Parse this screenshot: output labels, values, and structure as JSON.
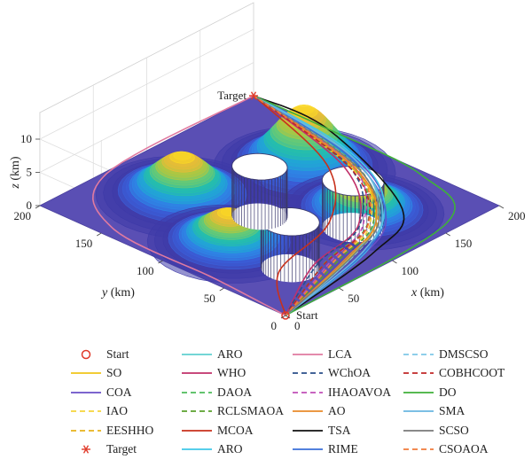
{
  "chart_data": {
    "type": "3d-path",
    "axes": {
      "x": {
        "label_var": "x",
        "label_unit": "(km)",
        "ticks": [
          0,
          50,
          100,
          150,
          200
        ],
        "range": [
          0,
          200
        ]
      },
      "y": {
        "label_var": "y",
        "label_unit": "(km)",
        "ticks": [
          0,
          50,
          100,
          150,
          200
        ],
        "range": [
          0,
          200
        ]
      },
      "z": {
        "label_var": "z",
        "label_unit": "(km)",
        "ticks": [
          0,
          5,
          10
        ],
        "range": [
          0,
          10
        ]
      }
    },
    "grid": true,
    "start": {
      "label": "Start",
      "x": 0,
      "y": 0,
      "z": 0
    },
    "target": {
      "label": "Target",
      "x": 200,
      "y": 200,
      "z": 0
    },
    "peaks": [
      {
        "x": 150,
        "y": 115,
        "h": 9.5,
        "s": 20
      },
      {
        "x": 70,
        "y": 145,
        "h": 6.5,
        "s": 19
      },
      {
        "x": 45,
        "y": 85,
        "h": 5,
        "s": 18
      },
      {
        "x": 135,
        "y": 55,
        "h": 4.5,
        "s": 18
      }
    ],
    "cylinders": [
      {
        "x": 48,
        "y": 38,
        "r": 18,
        "h": 7
      },
      {
        "x": 85,
        "y": 95,
        "r": 17,
        "h": 7.5
      },
      {
        "x": 115,
        "y": 45,
        "r": 19,
        "h": 7
      }
    ],
    "series": [
      {
        "name": "SO",
        "color": "#f0c419",
        "dash": "solid",
        "path": [
          [
            0,
            0
          ],
          [
            80,
            20
          ],
          [
            130,
            40
          ],
          [
            170,
            90
          ],
          [
            200,
            200
          ]
        ]
      },
      {
        "name": "COA",
        "color": "#6a4fc7",
        "dash": "solid",
        "path": [
          [
            0,
            0
          ],
          [
            95,
            18
          ],
          [
            140,
            40
          ],
          [
            180,
            95
          ],
          [
            200,
            200
          ]
        ]
      },
      {
        "name": "IAO",
        "color": "#f5d53a",
        "dash": "dashed",
        "path": [
          [
            0,
            0
          ],
          [
            75,
            25
          ],
          [
            125,
            40
          ],
          [
            175,
            95
          ],
          [
            200,
            200
          ]
        ]
      },
      {
        "name": "EESHHO",
        "color": "#e8b21a",
        "dash": "dashed",
        "path": [
          [
            0,
            0
          ],
          [
            85,
            20
          ],
          [
            135,
            42
          ],
          [
            172,
            92
          ],
          [
            200,
            200
          ]
        ]
      },
      {
        "name": "ARO",
        "color": "#5fcfcf",
        "dash": "solid",
        "path": [
          [
            0,
            0
          ],
          [
            90,
            22
          ],
          [
            150,
            55
          ],
          [
            185,
            110
          ],
          [
            200,
            200
          ]
        ]
      },
      {
        "name": "WHO",
        "color": "#c0306a",
        "dash": "solid",
        "path": [
          [
            0,
            0
          ],
          [
            60,
            30
          ],
          [
            120,
            45
          ],
          [
            170,
            100
          ],
          [
            200,
            200
          ]
        ]
      },
      {
        "name": "DAOA",
        "color": "#4dbb5a",
        "dash": "dashed",
        "path": [
          [
            0,
            0
          ],
          [
            70,
            28
          ],
          [
            125,
            42
          ],
          [
            175,
            98
          ],
          [
            200,
            200
          ]
        ]
      },
      {
        "name": "RCLSMAOA",
        "color": "#5aa02c",
        "dash": "dashed",
        "path": [
          [
            0,
            0
          ],
          [
            78,
            24
          ],
          [
            128,
            40
          ],
          [
            176,
            94
          ],
          [
            200,
            200
          ]
        ]
      },
      {
        "name": "MCOA",
        "color": "#c8311c",
        "dash": "solid",
        "path": [
          [
            0,
            0
          ],
          [
            40,
            40
          ],
          [
            110,
            60
          ],
          [
            165,
            110
          ],
          [
            200,
            200
          ]
        ]
      },
      {
        "name": "ARO",
        "color": "#3fc8e8",
        "dash": "solid",
        "path": [
          [
            0,
            0
          ],
          [
            100,
            20
          ],
          [
            160,
            60
          ],
          [
            190,
            120
          ],
          [
            200,
            200
          ]
        ]
      },
      {
        "name": "LCA",
        "color": "#e07aa0",
        "dash": "solid",
        "path": [
          [
            0,
            0
          ],
          [
            5,
            60
          ],
          [
            10,
            150
          ],
          [
            60,
            198
          ],
          [
            200,
            200
          ]
        ]
      },
      {
        "name": "WChOA",
        "color": "#2a4f8a",
        "dash": "dashed",
        "path": [
          [
            0,
            0
          ],
          [
            65,
            30
          ],
          [
            120,
            44
          ],
          [
            172,
            97
          ],
          [
            200,
            200
          ]
        ]
      },
      {
        "name": "IHAOAVOA",
        "color": "#c04fb8",
        "dash": "dashed",
        "path": [
          [
            0,
            0
          ],
          [
            72,
            26
          ],
          [
            122,
            43
          ],
          [
            174,
            96
          ],
          [
            200,
            200
          ]
        ]
      },
      {
        "name": "AO",
        "color": "#e8892a",
        "dash": "solid",
        "path": [
          [
            0,
            0
          ],
          [
            82,
            22
          ],
          [
            132,
            41
          ],
          [
            173,
            93
          ],
          [
            200,
            200
          ]
        ]
      },
      {
        "name": "TSA",
        "color": "#111111",
        "dash": "solid",
        "path": [
          [
            0,
            0
          ],
          [
            100,
            15
          ],
          [
            155,
            40
          ],
          [
            200,
            140
          ],
          [
            200,
            200
          ]
        ]
      },
      {
        "name": "RIME",
        "color": "#3a6fd8",
        "dash": "solid",
        "path": [
          [
            0,
            0
          ],
          [
            92,
            18
          ],
          [
            145,
            45
          ],
          [
            182,
            105
          ],
          [
            200,
            200
          ]
        ]
      },
      {
        "name": "DMSCSO",
        "color": "#7ec8e8",
        "dash": "dashed",
        "path": [
          [
            0,
            0
          ],
          [
            88,
            21
          ],
          [
            138,
            43
          ],
          [
            178,
            100
          ],
          [
            200,
            200
          ]
        ]
      },
      {
        "name": "COBHCOOT",
        "color": "#c02828",
        "dash": "dashed",
        "path": [
          [
            0,
            0
          ],
          [
            68,
            27
          ],
          [
            124,
            41
          ],
          [
            171,
            95
          ],
          [
            200,
            200
          ]
        ]
      },
      {
        "name": "DO",
        "color": "#3fb03a",
        "dash": "solid",
        "path": [
          [
            0,
            0
          ],
          [
            160,
            8
          ],
          [
            196,
            60
          ],
          [
            200,
            140
          ],
          [
            200,
            200
          ]
        ]
      },
      {
        "name": "SMA",
        "color": "#6ab6e0",
        "dash": "solid",
        "path": [
          [
            0,
            0
          ],
          [
            95,
            20
          ],
          [
            148,
            50
          ],
          [
            186,
            112
          ],
          [
            200,
            200
          ]
        ]
      },
      {
        "name": "SCSO",
        "color": "#7a7a7a",
        "dash": "solid",
        "path": [
          [
            0,
            0
          ],
          [
            86,
            21
          ],
          [
            136,
            42
          ],
          [
            177,
            98
          ],
          [
            200,
            200
          ]
        ]
      },
      {
        "name": "CSOAOA",
        "color": "#f07a3a",
        "dash": "dashed",
        "path": [
          [
            0,
            0
          ],
          [
            74,
            25
          ],
          [
            126,
            42
          ],
          [
            174,
            95
          ],
          [
            200,
            200
          ]
        ]
      }
    ],
    "legend": {
      "placement": "bottom",
      "columns": [
        [
          {
            "name": "Start",
            "color": "#e03a2a",
            "sym": "circle"
          },
          {
            "name": "SO",
            "color": "#f0c419",
            "sym": "solid"
          },
          {
            "name": "COA",
            "color": "#6a4fc7",
            "sym": "solid"
          },
          {
            "name": "IAO",
            "color": "#f5d53a",
            "sym": "dashed"
          },
          {
            "name": "EESHHO",
            "color": "#e8b21a",
            "sym": "dashed"
          },
          {
            "name": "Target",
            "color": "#e03a2a",
            "sym": "star"
          }
        ],
        [
          {
            "name": "ARO",
            "color": "#5fcfcf",
            "sym": "solid"
          },
          {
            "name": "WHO",
            "color": "#c0306a",
            "sym": "solid"
          },
          {
            "name": "DAOA",
            "color": "#4dbb5a",
            "sym": "dashed"
          },
          {
            "name": "RCLSMAOA",
            "color": "#5aa02c",
            "sym": "dashed"
          },
          {
            "name": "MCOA",
            "color": "#c8311c",
            "sym": "solid"
          },
          {
            "name": "ARO",
            "color": "#3fc8e8",
            "sym": "solid"
          }
        ],
        [
          {
            "name": "LCA",
            "color": "#e07aa0",
            "sym": "solid"
          },
          {
            "name": "WChOA",
            "color": "#2a4f8a",
            "sym": "dashed"
          },
          {
            "name": "IHAOAVOA",
            "color": "#c04fb8",
            "sym": "dashed"
          },
          {
            "name": "AO",
            "color": "#e8892a",
            "sym": "solid"
          },
          {
            "name": "TSA",
            "color": "#111111",
            "sym": "solid"
          },
          {
            "name": "RIME",
            "color": "#3a6fd8",
            "sym": "solid"
          }
        ],
        [
          {
            "name": "DMSCSO",
            "color": "#7ec8e8",
            "sym": "dashed"
          },
          {
            "name": "COBHCOOT",
            "color": "#c02828",
            "sym": "dashed"
          },
          {
            "name": "DO",
            "color": "#3fb03a",
            "sym": "solid"
          },
          {
            "name": "SMA",
            "color": "#6ab6e0",
            "sym": "solid"
          },
          {
            "name": "SCSO",
            "color": "#7a7a7a",
            "sym": "solid"
          },
          {
            "name": "CSOAOA",
            "color": "#f07a3a",
            "sym": "dashed"
          }
        ]
      ]
    }
  }
}
